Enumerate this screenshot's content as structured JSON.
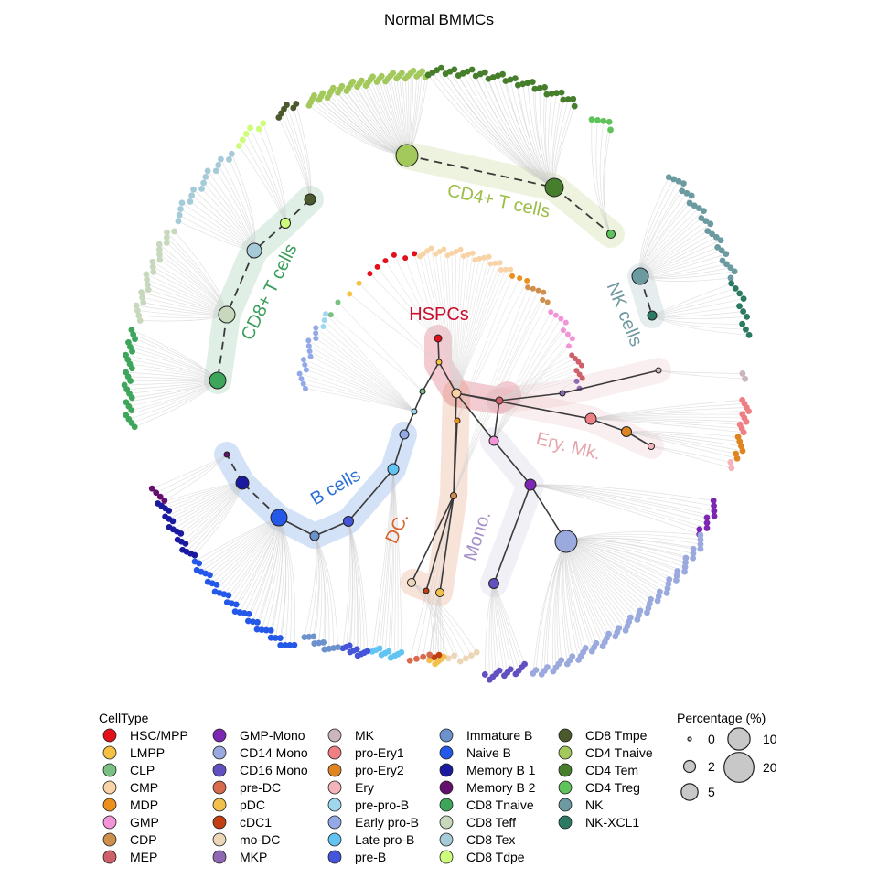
{
  "title": "Normal BMMCs",
  "lineages": [
    {
      "key": "hspcs",
      "label": "HSPCs",
      "color": "#c8102e"
    },
    {
      "key": "cd4",
      "label": "CD4+ T cells",
      "color": "#9cbd48"
    },
    {
      "key": "cd8",
      "label": "CD8+ T cells",
      "color": "#3a9d5b"
    },
    {
      "key": "nk",
      "label": "NK cells",
      "color": "#6f9aa0"
    },
    {
      "key": "ery",
      "label": "Ery. Mk.",
      "color": "#e4a6ad"
    },
    {
      "key": "b",
      "label": "B cells",
      "color": "#2a6fd6"
    },
    {
      "key": "dc",
      "label": "DC.",
      "color": "#d9622b"
    },
    {
      "key": "mono",
      "label": "Mono.",
      "color": "#a692c8"
    }
  ],
  "legend": {
    "celltype_title": "CellType",
    "celltypes": [
      {
        "name": "HSC/MPP",
        "color": "#e3101c"
      },
      {
        "name": "LMPP",
        "color": "#f7c244"
      },
      {
        "name": "CLP",
        "color": "#79c083"
      },
      {
        "name": "CMP",
        "color": "#f8d3a5"
      },
      {
        "name": "MDP",
        "color": "#ed8f1c"
      },
      {
        "name": "GMP",
        "color": "#f294d7"
      },
      {
        "name": "CDP",
        "color": "#cf8f4d"
      },
      {
        "name": "MEP",
        "color": "#cd6068"
      },
      {
        "name": "GMP-Mono",
        "color": "#7d26b3"
      },
      {
        "name": "CD14 Mono",
        "color": "#9aa9de"
      },
      {
        "name": "CD16 Mono",
        "color": "#6150c0"
      },
      {
        "name": "pre-DC",
        "color": "#d86a4e"
      },
      {
        "name": "pDC",
        "color": "#f2c04c"
      },
      {
        "name": "cDC1",
        "color": "#c23f12"
      },
      {
        "name": "mo-DC",
        "color": "#ecd6b8"
      },
      {
        "name": "MKP",
        "color": "#8f68b3"
      },
      {
        "name": "MK",
        "color": "#cbb6be"
      },
      {
        "name": "pro-Ery1",
        "color": "#ef7f85"
      },
      {
        "name": "pro-Ery2",
        "color": "#df8420"
      },
      {
        "name": "Ery",
        "color": "#f5b4bc"
      },
      {
        "name": "pre-pro-B",
        "color": "#9fd8ee"
      },
      {
        "name": "Early pro-B",
        "color": "#93a8e7"
      },
      {
        "name": "Late pro-B",
        "color": "#62c4f2"
      },
      {
        "name": "pre-B",
        "color": "#4555d9"
      },
      {
        "name": "Immature B",
        "color": "#6b92cc"
      },
      {
        "name": "Naive B",
        "color": "#2458e8"
      },
      {
        "name": "Memory B 1",
        "color": "#1a1aa0"
      },
      {
        "name": "Memory B 2",
        "color": "#650f6e"
      },
      {
        "name": "CD8 Tnaive",
        "color": "#3ea65a"
      },
      {
        "name": "CD8 Teff",
        "color": "#c8d8bd"
      },
      {
        "name": "CD8 Tex",
        "color": "#a6cbd8"
      },
      {
        "name": "CD8 Tdpe",
        "color": "#cffc7a"
      },
      {
        "name": "CD8 Tmpe",
        "color": "#4a5a2c"
      },
      {
        "name": "CD4 Tnaive",
        "color": "#a3c95c"
      },
      {
        "name": "CD4 Tem",
        "color": "#467e2c"
      },
      {
        "name": "CD4 Treg",
        "color": "#5ec35a"
      },
      {
        "name": "NK",
        "color": "#6b9aa1"
      },
      {
        "name": "NK-XCL1",
        "color": "#2c7a63"
      }
    ],
    "percentage_title": "Percentage (%)",
    "percentage_sizes": [
      {
        "label": "0",
        "value": 0
      },
      {
        "label": "2",
        "value": 2
      },
      {
        "label": "5",
        "value": 5
      },
      {
        "label": "10",
        "value": 10
      },
      {
        "label": "20",
        "value": 20
      }
    ]
  }
}
